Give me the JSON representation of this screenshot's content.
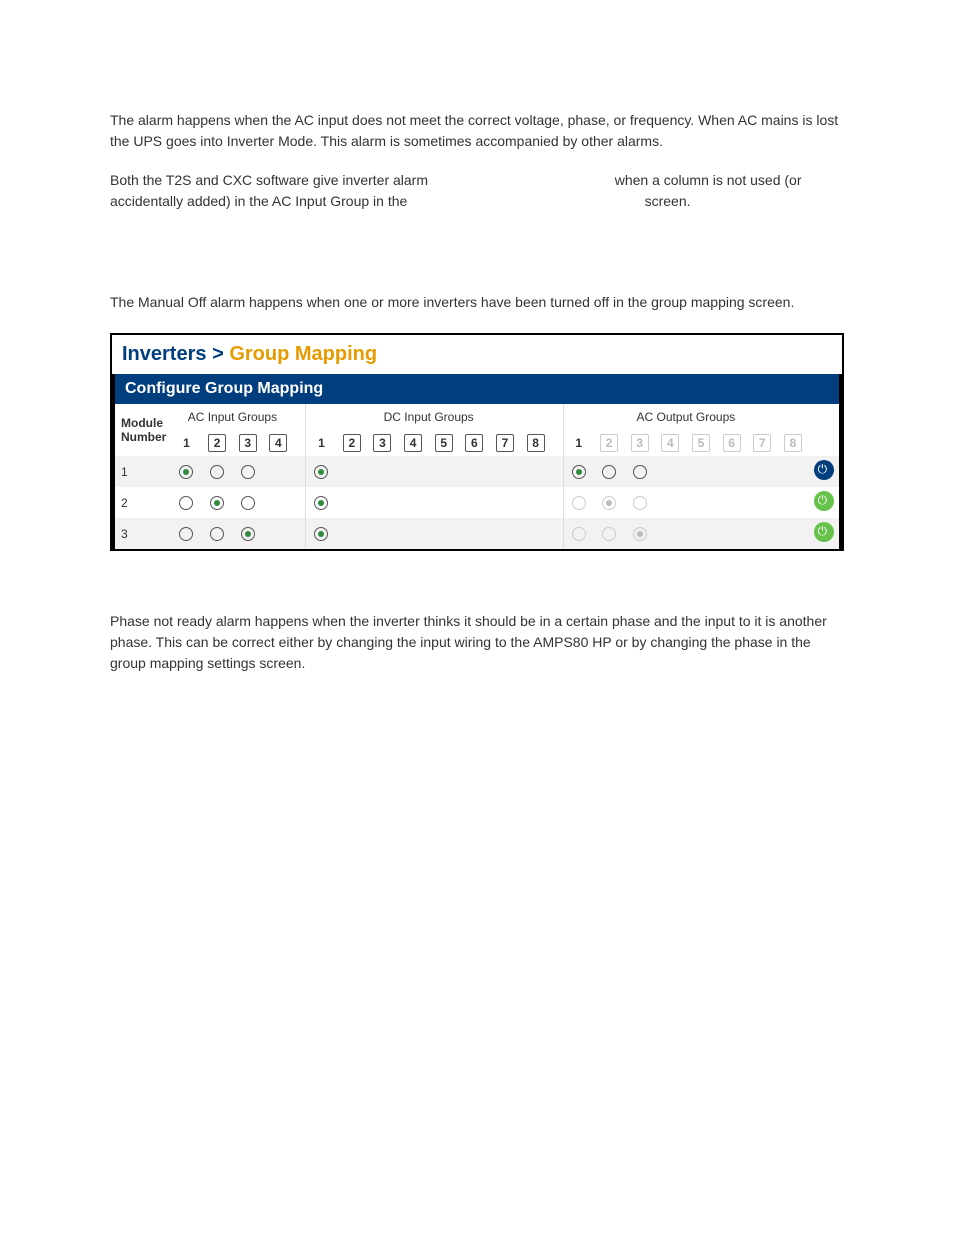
{
  "text": {
    "p1": "The                          alarm happens when the AC input does not meet the correct voltage, phase, or frequency. When AC mains is lost the UPS goes into Inverter Mode. This alarm is sometimes accompanied by other alarms.",
    "p2a": "Both the T2S and CXC software give inverter alarm",
    "p2b": "when a column is not used (or accidentally added) in the AC Input Group in the",
    "p2c": "screen.",
    "p3": "The Manual Off alarm happens when one or more inverters have been turned off in the group mapping screen.",
    "p4": "Phase not ready alarm happens when the inverter thinks it should be in a certain phase and the input to it is another phase. This can be correct either by changing the input wiring to the AMPS80 HP or by changing the phase in the group mapping settings screen."
  },
  "ui": {
    "breadcrumb": {
      "part1": "Inverters",
      "sep": ">",
      "part2": "Group Mapping"
    },
    "panel_title": "Configure Group Mapping",
    "columns": {
      "module": "Module Number",
      "ac_in": "AC Input Groups",
      "dc_in": "DC Input Groups",
      "ac_out": "AC Output Groups"
    },
    "ac_in_cols": {
      "count": 4,
      "plain_first": true,
      "disabled": []
    },
    "dc_in_cols": {
      "count": 8,
      "plain_first": true,
      "disabled": []
    },
    "ac_out_cols": {
      "count": 8,
      "plain_first": true,
      "disabled": [
        2,
        3,
        4,
        5,
        6,
        7,
        8
      ]
    },
    "rows": [
      {
        "module": "1",
        "odd": true,
        "ac_in": {
          "selected": 1,
          "show": 3,
          "disabled": false
        },
        "dc_in": {
          "selected": 1,
          "show": 1,
          "disabled": false
        },
        "ac_out": {
          "selected": 1,
          "show": 3,
          "disabled": false
        },
        "power": "dark"
      },
      {
        "module": "2",
        "odd": false,
        "ac_in": {
          "selected": 2,
          "show": 3,
          "disabled": false
        },
        "dc_in": {
          "selected": 1,
          "show": 1,
          "disabled": false
        },
        "ac_out": {
          "selected": 2,
          "show": 3,
          "disabled": true
        },
        "power": "green"
      },
      {
        "module": "3",
        "odd": true,
        "ac_in": {
          "selected": 3,
          "show": 3,
          "disabled": false
        },
        "dc_in": {
          "selected": 1,
          "show": 1,
          "disabled": false
        },
        "ac_out": {
          "selected": 3,
          "show": 3,
          "disabled": true
        },
        "power": "green"
      }
    ]
  }
}
